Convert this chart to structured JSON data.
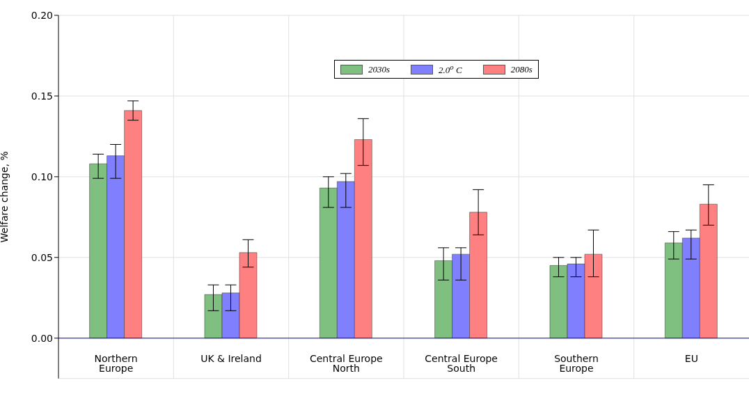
{
  "chart_data": {
    "type": "bar",
    "ylabel": "Welfare change, %",
    "categories": [
      "Northern Europe",
      "UK & Ireland",
      "Central Europe North",
      "Central Europe South",
      "Southern Europe",
      "EU"
    ],
    "series": [
      {
        "name": "2030s",
        "color": "#7fbf7f",
        "values": [
          0.108,
          0.027,
          0.093,
          0.048,
          0.045,
          0.059
        ],
        "errors": [
          [
            0.099,
            0.114
          ],
          [
            0.017,
            0.033
          ],
          [
            0.081,
            0.1
          ],
          [
            0.036,
            0.056
          ],
          [
            0.038,
            0.05
          ],
          [
            0.049,
            0.066
          ]
        ]
      },
      {
        "name": "2.0$^{o}$ C",
        "color": "#8080ff",
        "values": [
          0.113,
          0.028,
          0.097,
          0.052,
          0.046,
          0.062
        ],
        "errors": [
          [
            0.099,
            0.12
          ],
          [
            0.017,
            0.033
          ],
          [
            0.081,
            0.102
          ],
          [
            0.036,
            0.056
          ],
          [
            0.038,
            0.05
          ],
          [
            0.049,
            0.067
          ]
        ]
      },
      {
        "name": "2080s",
        "color": "#ff8080",
        "values": [
          0.141,
          0.053,
          0.123,
          0.078,
          0.052,
          0.083
        ],
        "errors": [
          [
            0.135,
            0.147
          ],
          [
            0.044,
            0.061
          ],
          [
            0.107,
            0.136
          ],
          [
            0.064,
            0.092
          ],
          [
            0.038,
            0.067
          ],
          [
            0.07,
            0.095
          ]
        ]
      }
    ],
    "ylim": [
      -0.025,
      0.2
    ],
    "yticks": [
      {
        "value": 0,
        "label": "0.00"
      },
      {
        "value": 0.05,
        "label": "0.05"
      },
      {
        "value": 0.1,
        "label": "0.10"
      },
      {
        "value": 0.15,
        "label": "0.15"
      },
      {
        "value": 0.2,
        "label": "0.20"
      }
    ],
    "ref_lines": [
      {
        "axis": "y",
        "value": 0,
        "color": "#0000ff"
      }
    ],
    "grid": true,
    "legend": "top"
  }
}
